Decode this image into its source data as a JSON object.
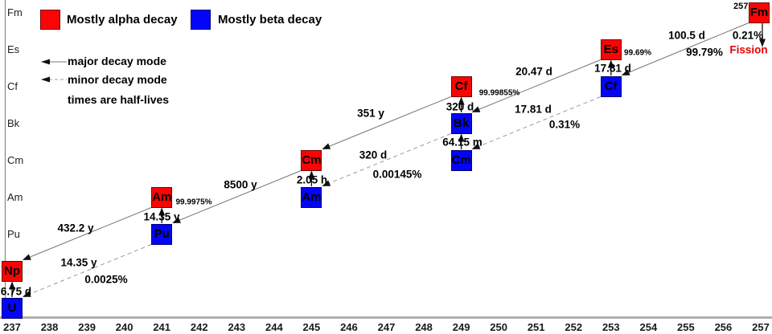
{
  "legend": {
    "alpha_label": "Mostly alpha decay",
    "beta_label": "Mostly beta decay",
    "alpha_color": "#fb0404",
    "beta_color": "#0404fb",
    "major_label": "major decay mode",
    "minor_label": "minor decay mode",
    "halflife_note": "times are half-lives"
  },
  "axes": {
    "element_rows": [
      "Fm",
      "Es",
      "Cf",
      "Bk",
      "Cm",
      "Am",
      "Pu"
    ],
    "mass_ticks": [
      "237",
      "238",
      "239",
      "240",
      "241",
      "242",
      "243",
      "244",
      "245",
      "246",
      "247",
      "248",
      "249",
      "250",
      "251",
      "252",
      "253",
      "254",
      "255",
      "256",
      "257"
    ]
  },
  "nuclides": [
    {
      "id": "Fm257",
      "symbol": "Fm",
      "mass": 257,
      "row": "Fm",
      "decay": "alpha",
      "mass_label": "257"
    },
    {
      "id": "Es253",
      "symbol": "Es",
      "mass": 253,
      "row": "Es",
      "decay": "alpha"
    },
    {
      "id": "Cf253",
      "symbol": "Cf",
      "mass": 253,
      "row": "Cf",
      "decay": "beta"
    },
    {
      "id": "Cf249",
      "symbol": "Cf",
      "mass": 249,
      "row": "Cf",
      "decay": "alpha"
    },
    {
      "id": "Bk249",
      "symbol": "Bk",
      "mass": 249,
      "row": "Bk",
      "decay": "beta"
    },
    {
      "id": "Cm249",
      "symbol": "Cm",
      "mass": 249,
      "row": "Cm",
      "decay": "beta"
    },
    {
      "id": "Cm245",
      "symbol": "Cm",
      "mass": 245,
      "row": "Cm",
      "decay": "alpha"
    },
    {
      "id": "Am245",
      "symbol": "Am",
      "mass": 245,
      "row": "Am",
      "decay": "beta"
    },
    {
      "id": "Am241",
      "symbol": "Am",
      "mass": 241,
      "row": "Am",
      "decay": "alpha"
    },
    {
      "id": "Pu241",
      "symbol": "Pu",
      "mass": 241,
      "row": "Pu",
      "decay": "beta"
    },
    {
      "id": "Np237",
      "symbol": "Np",
      "mass": 237,
      "row": "Np",
      "decay": "alpha"
    },
    {
      "id": "U237",
      "symbol": "U",
      "mass": 237,
      "row": "U",
      "decay": "beta"
    }
  ],
  "decays": [
    {
      "id": "fm257-cf253",
      "from": "Fm257",
      "to": "Cf253",
      "type": "alpha",
      "mode": "major",
      "halflife": "100.5 d",
      "branch": "99.79%"
    },
    {
      "id": "es253-bk249",
      "from": "Es253",
      "to": "Bk249",
      "type": "alpha",
      "mode": "major",
      "halflife": "20.47 d"
    },
    {
      "id": "cf249-cm245",
      "from": "Cf249",
      "to": "Cm245",
      "type": "alpha",
      "mode": "major",
      "halflife": "351 y"
    },
    {
      "id": "cm245-pu241",
      "from": "Cm245",
      "to": "Pu241",
      "type": "alpha",
      "mode": "major",
      "halflife": "8500 y"
    },
    {
      "id": "am241-np237",
      "from": "Am241",
      "to": "Np237",
      "type": "alpha",
      "mode": "major",
      "halflife": "432.2 y"
    },
    {
      "id": "cf253-cm249",
      "from": "Cf253",
      "to": "Cm249",
      "type": "alpha",
      "mode": "minor",
      "halflife": "17.81 d",
      "branch": "0.31%"
    },
    {
      "id": "bk249-am245",
      "from": "Bk249",
      "to": "Am245",
      "type": "alpha",
      "mode": "minor",
      "halflife": "320 d",
      "branch": "0.00145%"
    },
    {
      "id": "pu241-u237",
      "from": "Pu241",
      "to": "U237",
      "type": "alpha",
      "mode": "minor",
      "halflife": "14.35 y",
      "branch": "0.0025%"
    },
    {
      "id": "cf253-es253",
      "from": "Cf253",
      "to": "Es253",
      "type": "beta",
      "mode": "major",
      "halflife": "17.81 d",
      "branch": "99.69%"
    },
    {
      "id": "bk249-cf249",
      "from": "Bk249",
      "to": "Cf249",
      "type": "beta",
      "mode": "major",
      "halflife": "320 d",
      "branch": "99.99855%"
    },
    {
      "id": "cm249-bk249",
      "from": "Cm249",
      "to": "Bk249",
      "type": "beta",
      "mode": "major",
      "halflife": "64.15 m"
    },
    {
      "id": "am245-cm245",
      "from": "Am245",
      "to": "Cm245",
      "type": "beta",
      "mode": "major",
      "halflife": "2.05 h"
    },
    {
      "id": "pu241-am241",
      "from": "Pu241",
      "to": "Am241",
      "type": "beta",
      "mode": "major",
      "halflife": "14.35 y",
      "branch": "99.9975%"
    },
    {
      "id": "u237-np237",
      "from": "U237",
      "to": "Np237",
      "type": "beta",
      "mode": "major",
      "halflife": "6.75 d"
    },
    {
      "id": "fm257-fission",
      "from": "Fm257",
      "to": null,
      "type": "fission",
      "mode": "major",
      "branch": "0.21%",
      "label": "Fission"
    }
  ]
}
